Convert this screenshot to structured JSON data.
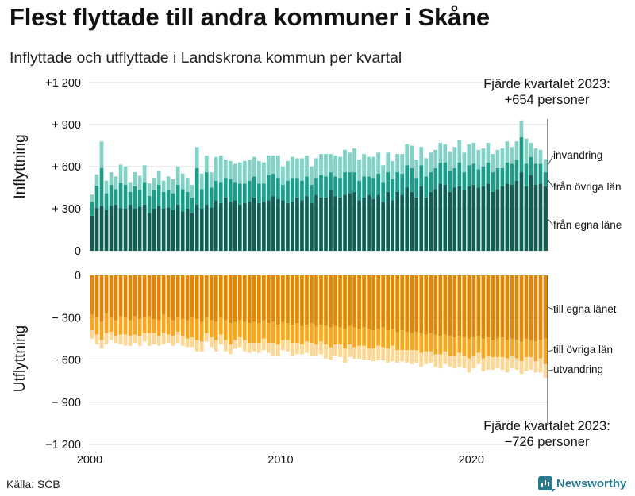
{
  "title": "Flest flyttade till andra kommuner i Skåne",
  "subtitle": "Inflyttade och utflyttade i Landskrona kommun per kvartal",
  "source": "Källa: SCB",
  "brand": "Newsworthy",
  "colors": {
    "in_egna": "#125e54",
    "in_ovriga": "#1f9c88",
    "in_invandring": "#86d1c5",
    "out_egna": "#e0870a",
    "out_ovriga": "#f6a623",
    "out_utvandring": "#fbd79a",
    "grid": "#dddddd",
    "text": "#111111"
  },
  "chart_data": [
    {
      "type": "bar",
      "stacked": true,
      "panel": "inflyttning",
      "ylabel": "Inflyttning",
      "ylim": [
        0,
        1200
      ],
      "yticks": [
        "0",
        "+  300",
        "+  600",
        "+  900",
        "+1 200"
      ],
      "xticks": [
        "2000",
        "2010",
        "2020"
      ],
      "x_start": "2000 Q1",
      "x_end": "2023 Q4",
      "annotation_line1": "Fjärde kvartalet 2023:",
      "annotation_line2": "+654 personer",
      "series": [
        {
          "name": "från egna läne",
          "color_key": "in_egna",
          "values": [
            250,
            305,
            320,
            290,
            320,
            330,
            305,
            300,
            330,
            300,
            315,
            330,
            270,
            300,
            320,
            300,
            310,
            290,
            330,
            280,
            300,
            270,
            330,
            300,
            330,
            310,
            360,
            340,
            380,
            350,
            360,
            330,
            340,
            350,
            380,
            340,
            350,
            360,
            390,
            370,
            360,
            340,
            350,
            380,
            360,
            390,
            340,
            400,
            380,
            380,
            430,
            390,
            380,
            400,
            410,
            420,
            360,
            380,
            400,
            370,
            400,
            350,
            420,
            360,
            420,
            400,
            450,
            420,
            380,
            460,
            380,
            420,
            440,
            480,
            470,
            420,
            450,
            460,
            430,
            460,
            470,
            450,
            460,
            480,
            420,
            440,
            460,
            480,
            470,
            500,
            560,
            460,
            540,
            470,
            480,
            460
          ]
        },
        {
          "name": "från övriga län",
          "color_key": "in_ovriga",
          "values": [
            100,
            160,
            270,
            120,
            150,
            110,
            180,
            170,
            90,
            160,
            120,
            160,
            120,
            130,
            150,
            120,
            120,
            120,
            140,
            160,
            120,
            110,
            260,
            140,
            230,
            140,
            140,
            150,
            140,
            160,
            130,
            150,
            140,
            150,
            150,
            140,
            130,
            180,
            160,
            150,
            110,
            160,
            170,
            140,
            140,
            140,
            130,
            120,
            160,
            150,
            130,
            140,
            140,
            160,
            150,
            140,
            140,
            150,
            130,
            150,
            150,
            140,
            140,
            150,
            140,
            150,
            160,
            170,
            140,
            150,
            150,
            140,
            150,
            150,
            160,
            150,
            140,
            170,
            130,
            150,
            150,
            130,
            140,
            150,
            140,
            150,
            130,
            150,
            150,
            150,
            250,
            160,
            130,
            150,
            140,
            100
          ]
        },
        {
          "name": "invandring",
          "color_key": "in_invandring",
          "values": [
            50,
            80,
            190,
            90,
            90,
            90,
            130,
            130,
            70,
            100,
            100,
            120,
            90,
            90,
            100,
            80,
            100,
            100,
            130,
            110,
            100,
            90,
            150,
            110,
            120,
            110,
            170,
            190,
            130,
            130,
            130,
            150,
            160,
            150,
            140,
            160,
            150,
            140,
            130,
            160,
            130,
            140,
            150,
            140,
            160,
            150,
            130,
            140,
            150,
            160,
            130,
            150,
            150,
            160,
            140,
            170,
            150,
            160,
            140,
            150,
            150,
            120,
            140,
            130,
            130,
            140,
            150,
            160,
            130,
            130,
            130,
            140,
            130,
            140,
            130,
            140,
            150,
            160,
            140,
            150,
            150,
            140,
            130,
            140,
            130,
            130,
            140,
            150,
            120,
            130,
            120,
            180,
            100,
            110,
            100,
            94
          ]
        }
      ]
    },
    {
      "type": "bar",
      "stacked": true,
      "panel": "utflyttning",
      "ylabel": "Utflyttning",
      "ylim": [
        -1200,
        0
      ],
      "yticks": [
        "0",
        "− 300",
        "− 600",
        "− 900",
        "−1 200"
      ],
      "xticks": [
        "2000",
        "2010",
        "2020"
      ],
      "x_start": "2000 Q1",
      "x_end": "2023 Q4",
      "annotation_line1": "Fjärde kvartalet 2023:",
      "annotation_line2": "−726 personer",
      "series": [
        {
          "name": "till egna länet",
          "color_key": "out_egna",
          "values": [
            -280,
            -300,
            -330,
            -270,
            -300,
            -320,
            -290,
            -300,
            -320,
            -290,
            -310,
            -300,
            -290,
            -310,
            -320,
            -280,
            -300,
            -320,
            -300,
            -310,
            -320,
            -300,
            -310,
            -330,
            -300,
            -320,
            -330,
            -300,
            -320,
            -340,
            -330,
            -320,
            -330,
            -340,
            -330,
            -340,
            -320,
            -340,
            -330,
            -350,
            -330,
            -340,
            -350,
            -340,
            -360,
            -350,
            -340,
            -360,
            -350,
            -360,
            -370,
            -360,
            -370,
            -380,
            -360,
            -370,
            -380,
            -370,
            -380,
            -390,
            -380,
            -370,
            -390,
            -380,
            -400,
            -390,
            -400,
            -410,
            -400,
            -410,
            -420,
            -410,
            -420,
            -430,
            -420,
            -430,
            -440,
            -430,
            -440,
            -450,
            -440,
            -430,
            -450,
            -440,
            -460,
            -450,
            -440,
            -460,
            -450,
            -460,
            -470,
            -450,
            -460,
            -470,
            -460,
            -450
          ]
        },
        {
          "name": "till övriga län",
          "color_key": "out_ovriga",
          "values": [
            -110,
            -120,
            -130,
            -140,
            -100,
            -110,
            -130,
            -120,
            -110,
            -130,
            -120,
            -110,
            -120,
            -100,
            -110,
            -130,
            -120,
            -110,
            -100,
            -120,
            -130,
            -140,
            -150,
            -140,
            -110,
            -120,
            -130,
            -120,
            -140,
            -150,
            -130,
            -120,
            -130,
            -140,
            -150,
            -140,
            -130,
            -140,
            -150,
            -140,
            -130,
            -120,
            -130,
            -140,
            -130,
            -120,
            -140,
            -130,
            -120,
            -130,
            -140,
            -130,
            -120,
            -140,
            -130,
            -140,
            -120,
            -130,
            -140,
            -130,
            -120,
            -140,
            -130,
            -120,
            -130,
            -140,
            -130,
            -120,
            -130,
            -140,
            -120,
            -130,
            -140,
            -130,
            -120,
            -140,
            -130,
            -120,
            -130,
            -140,
            -130,
            -120,
            -140,
            -130,
            -120,
            -130,
            -140,
            -130,
            -120,
            -130,
            -140,
            -130,
            -120,
            -140,
            -130,
            -180
          ]
        },
        {
          "name": "utvandring",
          "color_key": "out_utvandring",
          "values": [
            -60,
            -70,
            -60,
            -80,
            -60,
            -50,
            -70,
            -80,
            -70,
            -60,
            -70,
            -60,
            -90,
            -80,
            -70,
            -80,
            -60,
            -70,
            -80,
            -70,
            -60,
            -70,
            -80,
            -70,
            -60,
            -70,
            -80,
            -70,
            -80,
            -70,
            -60,
            -70,
            -80,
            -70,
            -60,
            -70,
            -80,
            -70,
            -90,
            -80,
            -70,
            -80,
            -90,
            -80,
            -70,
            -80,
            -90,
            -80,
            -90,
            -100,
            -90,
            -80,
            -90,
            -100,
            -90,
            -80,
            -90,
            -100,
            -80,
            -90,
            -100,
            -90,
            -100,
            -110,
            -90,
            -80,
            -90,
            -100,
            -90,
            -100,
            -90,
            -80,
            -90,
            -100,
            -90,
            -80,
            -90,
            -100,
            -90,
            -100,
            -90,
            -80,
            -90,
            -100,
            -90,
            -80,
            -90,
            -100,
            -90,
            -80,
            -90,
            -100,
            -90,
            -80,
            -100,
            -96
          ]
        }
      ]
    }
  ]
}
